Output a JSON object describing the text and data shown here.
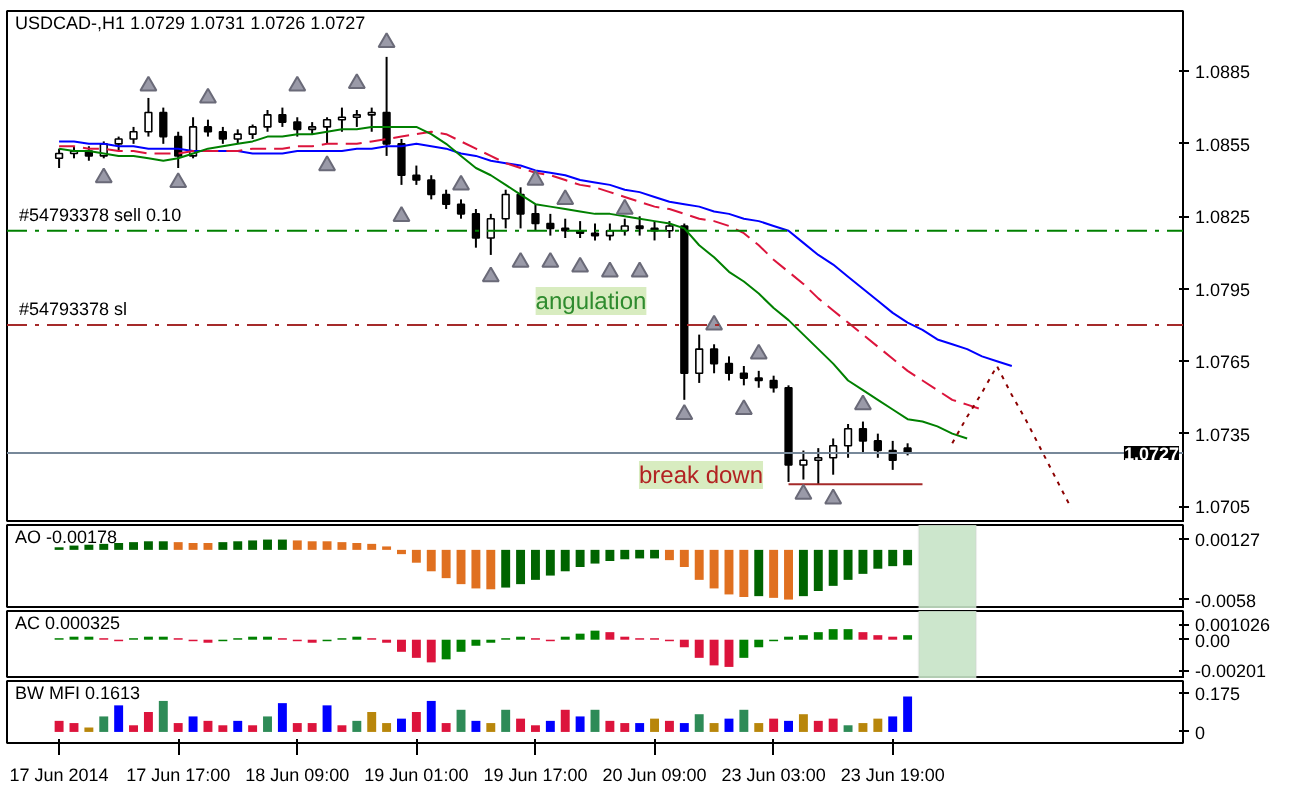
{
  "chart_data": [
    {
      "type": "candlestick",
      "title": "USDCAD-,H1  1.0729 1.0731 1.0726 1.0727",
      "categories": [
        "17 Jun 2014",
        null,
        null,
        null,
        null,
        null,
        null,
        null,
        "17 Jun 17:00",
        null,
        null,
        null,
        null,
        null,
        null,
        null,
        "18 Jun 09:00",
        null,
        null,
        null,
        null,
        null,
        null,
        null,
        "19 Jun 01:00",
        null,
        null,
        null,
        null,
        null,
        null,
        null,
        "19 Jun 17:00",
        null,
        null,
        null,
        null,
        null,
        null,
        null,
        "20 Jun 09:00",
        null,
        null,
        null,
        null,
        null,
        null,
        null,
        "23 Jun 03:00",
        null,
        null,
        null,
        null,
        null,
        null,
        null,
        "23 Jun 19:00",
        null,
        null,
        null,
        null,
        null,
        null,
        null,
        null,
        null,
        null,
        null,
        null,
        null,
        null,
        null,
        null,
        null,
        null,
        null
      ],
      "ohlc": [
        [
          1.0849,
          1.0853,
          1.0845,
          1.0851
        ],
        [
          1.0851,
          1.0854,
          1.0849,
          1.0852
        ],
        [
          1.0852,
          1.0854,
          1.0848,
          1.085
        ],
        [
          1.085,
          1.0856,
          1.0849,
          1.0855
        ],
        [
          1.0855,
          1.0858,
          1.0852,
          1.0857
        ],
        [
          1.0857,
          1.0862,
          1.0855,
          1.086
        ],
        [
          1.086,
          1.0874,
          1.0858,
          1.0868
        ],
        [
          1.0868,
          1.087,
          1.0855,
          1.0858
        ],
        [
          1.0858,
          1.086,
          1.0845,
          1.085
        ],
        [
          1.085,
          1.0866,
          1.0849,
          1.0862
        ],
        [
          1.0862,
          1.0865,
          1.0858,
          1.086
        ],
        [
          1.086,
          1.0862,
          1.0855,
          1.0857
        ],
        [
          1.0857,
          1.0861,
          1.0855,
          1.0859
        ],
        [
          1.0859,
          1.0863,
          1.0857,
          1.0862
        ],
        [
          1.0862,
          1.0869,
          1.086,
          1.0867
        ],
        [
          1.0867,
          1.087,
          1.0862,
          1.0864
        ],
        [
          1.0864,
          1.0866,
          1.0858,
          1.0861
        ],
        [
          1.0861,
          1.0864,
          1.0859,
          1.0862
        ],
        [
          1.0862,
          1.0866,
          1.0855,
          1.0865
        ],
        [
          1.0865,
          1.087,
          1.086,
          1.0866
        ],
        [
          1.0866,
          1.0869,
          1.0862,
          1.0867
        ],
        [
          1.0867,
          1.087,
          1.086,
          1.0868
        ],
        [
          1.0868,
          1.0891,
          1.085,
          1.0855
        ],
        [
          1.0855,
          1.0857,
          1.0838,
          1.0842
        ],
        [
          1.0842,
          1.0846,
          1.0838,
          1.084
        ],
        [
          1.084,
          1.0842,
          1.0832,
          1.0834
        ],
        [
          1.0834,
          1.0836,
          1.0828,
          1.083
        ],
        [
          1.083,
          1.0832,
          1.0824,
          1.0826
        ],
        [
          1.0826,
          1.0828,
          1.0812,
          1.0816
        ],
        [
          1.0816,
          1.0826,
          1.0809,
          1.0824
        ],
        [
          1.0824,
          1.0836,
          1.082,
          1.0834
        ],
        [
          1.0834,
          1.0837,
          1.082,
          1.0826
        ],
        [
          1.0826,
          1.083,
          1.0819,
          1.0822
        ],
        [
          1.0822,
          1.0826,
          1.0817,
          1.082
        ],
        [
          1.082,
          1.0824,
          1.0816,
          1.0819
        ],
        [
          1.0819,
          1.0823,
          1.0816,
          1.0818
        ],
        [
          1.0818,
          1.0822,
          1.0815,
          1.0817
        ],
        [
          1.0817,
          1.0822,
          1.0815,
          1.0819
        ],
        [
          1.0819,
          1.0824,
          1.0817,
          1.0821
        ],
        [
          1.0821,
          1.0825,
          1.0817,
          1.082
        ],
        [
          1.082,
          1.0823,
          1.0815,
          1.0819
        ],
        [
          1.0819,
          1.0823,
          1.0816,
          1.0821
        ],
        [
          1.0821,
          1.0822,
          1.0749,
          1.076
        ],
        [
          1.076,
          1.0776,
          1.0756,
          1.077
        ],
        [
          1.077,
          1.0772,
          1.076,
          1.0764
        ],
        [
          1.0764,
          1.0767,
          1.0757,
          1.076
        ],
        [
          1.076,
          1.0763,
          1.0755,
          1.0758
        ],
        [
          1.0758,
          1.0761,
          1.0754,
          1.0757
        ],
        [
          1.0757,
          1.0759,
          1.0752,
          1.0754
        ],
        [
          1.0754,
          1.0755,
          1.0715,
          1.0722
        ],
        [
          1.0722,
          1.0728,
          1.0716,
          1.0724
        ],
        [
          1.0724,
          1.0729,
          1.0714,
          1.0725
        ],
        [
          1.0725,
          1.0733,
          1.0718,
          1.073
        ],
        [
          1.073,
          1.0739,
          1.0725,
          1.0737
        ],
        [
          1.0737,
          1.074,
          1.0727,
          1.0732
        ],
        [
          1.0732,
          1.0735,
          1.0725,
          1.0728
        ],
        [
          1.0728,
          1.0732,
          1.072,
          1.0724
        ],
        [
          1.0729,
          1.0731,
          1.0726,
          1.0727
        ],
        null,
        null,
        null,
        null,
        null,
        null,
        null,
        null,
        null,
        null,
        null,
        null,
        null,
        null,
        null,
        null,
        null,
        null
      ],
      "series": [
        {
          "type": "line",
          "color": "#0000ff",
          "values": [
            1.0856,
            1.0856,
            1.0855,
            1.0855,
            1.0854,
            1.0854,
            1.0853,
            1.0853,
            1.0853,
            1.0852,
            1.0852,
            1.0852,
            1.0852,
            1.0851,
            1.0851,
            1.0851,
            1.0852,
            1.0852,
            1.0852,
            1.0852,
            1.0853,
            1.0853,
            1.0854,
            1.0854,
            1.0855,
            1.0854,
            1.0853,
            1.0851,
            1.085,
            1.0848,
            1.0847,
            1.0846,
            1.0844,
            1.0843,
            1.0842,
            1.084,
            1.0839,
            1.0838,
            1.0836,
            1.0835,
            1.0833,
            1.0831,
            1.083,
            1.0829,
            1.0827,
            1.0826,
            1.0824,
            1.0823,
            1.0821,
            1.0819,
            1.0814,
            1.0809,
            1.0805,
            1.08,
            1.0795,
            1.079,
            1.0785,
            1.0781,
            1.0778,
            1.0774,
            1.0772,
            1.077,
            1.0767,
            1.0765,
            1.0763,
            null,
            null,
            null,
            null,
            null,
            null,
            null,
            null,
            null,
            null,
            null
          ]
        },
        {
          "type": "line",
          "color": "#dc143c",
          "line_style": "dashed",
          "values": [
            1.0854,
            1.0854,
            1.0853,
            1.0853,
            1.0852,
            1.0852,
            1.0851,
            1.0851,
            1.0851,
            1.0852,
            1.0852,
            1.0852,
            1.0852,
            1.0853,
            1.0853,
            1.0853,
            1.0854,
            1.0854,
            1.0855,
            1.0855,
            1.0855,
            1.0856,
            1.0857,
            1.0858,
            1.0859,
            1.086,
            1.0859,
            1.0856,
            1.0853,
            1.085,
            1.0847,
            1.0845,
            1.0843,
            1.0842,
            1.084,
            1.0838,
            1.0837,
            1.0835,
            1.0833,
            1.0831,
            1.0829,
            1.0828,
            1.0826,
            1.0824,
            1.0823,
            1.0821,
            1.0818,
            1.0813,
            1.0807,
            1.0802,
            1.0797,
            1.0791,
            1.0786,
            1.0781,
            1.0776,
            1.0771,
            1.0766,
            1.0761,
            1.0757,
            1.0753,
            1.0749,
            1.0747,
            1.0745,
            null,
            null,
            null,
            null,
            null,
            null,
            null,
            null,
            null,
            null,
            null,
            null,
            null
          ]
        },
        {
          "type": "line",
          "color": "#008000",
          "values": [
            1.0853,
            1.0852,
            1.0852,
            1.0851,
            1.085,
            1.085,
            1.0849,
            1.0848,
            1.0849,
            1.0851,
            1.0853,
            1.0854,
            1.0855,
            1.0856,
            1.0858,
            1.0858,
            1.0859,
            1.0859,
            1.086,
            1.0861,
            1.0861,
            1.0862,
            1.0862,
            1.0862,
            1.0862,
            1.0859,
            1.0855,
            1.085,
            1.0845,
            1.0842,
            1.0838,
            1.0834,
            1.083,
            1.0829,
            1.0828,
            1.0827,
            1.0826,
            1.0826,
            1.0825,
            1.0824,
            1.0823,
            1.0822,
            1.082,
            1.0813,
            1.0808,
            1.0802,
            1.0798,
            1.0793,
            1.0787,
            1.0782,
            1.0776,
            1.077,
            1.0764,
            1.0757,
            1.0753,
            1.0749,
            1.0745,
            1.0741,
            1.074,
            1.0738,
            1.0735,
            1.0733,
            null,
            null,
            null,
            null,
            null,
            null,
            null,
            null,
            null,
            null,
            null,
            null,
            null,
            null
          ]
        },
        {
          "type": "line",
          "color": "#8b0000",
          "line_style": "dotted",
          "values": [
            null,
            null,
            null,
            null,
            null,
            null,
            null,
            null,
            null,
            null,
            null,
            null,
            null,
            null,
            null,
            null,
            null,
            null,
            null,
            null,
            null,
            null,
            null,
            null,
            null,
            null,
            null,
            null,
            null,
            null,
            null,
            null,
            null,
            null,
            null,
            null,
            null,
            null,
            null,
            null,
            null,
            null,
            null,
            null,
            null,
            null,
            null,
            null,
            null,
            null,
            null,
            null,
            null,
            null,
            null,
            null,
            null,
            null,
            null,
            null,
            1.0731,
            1.0742,
            1.0752,
            1.0763,
            1.0751,
            1.074,
            1.0728,
            1.0716,
            1.0704,
            null,
            null,
            null,
            null,
            null,
            null,
            null
          ]
        },
        {
          "type": "line",
          "color": "#a52a2a",
          "values": [
            null,
            null,
            null,
            null,
            null,
            null,
            null,
            null,
            null,
            null,
            null,
            null,
            null,
            null,
            null,
            null,
            null,
            null,
            null,
            null,
            null,
            null,
            null,
            null,
            null,
            null,
            null,
            null,
            null,
            null,
            null,
            null,
            null,
            null,
            null,
            null,
            null,
            null,
            null,
            null,
            null,
            null,
            null,
            null,
            null,
            null,
            null,
            null,
            null,
            1.0714,
            1.0714,
            1.0714,
            1.0714,
            1.0714,
            1.0714,
            1.0714,
            1.0714,
            1.0714,
            1.0714,
            null,
            null,
            null,
            null,
            null,
            null,
            null,
            null,
            null,
            null,
            null,
            null,
            null,
            null,
            null,
            null,
            null
          ]
        },
        {
          "type": "scatter",
          "marker": "triangle",
          "color": "#9a9aa8",
          "values": [
            null,
            null,
            null,
            1.0841,
            null,
            null,
            1.0879,
            null,
            1.0839,
            null,
            1.0874,
            null,
            null,
            null,
            null,
            null,
            1.0879,
            null,
            1.0846,
            null,
            1.088,
            null,
            1.0897,
            1.0825,
            null,
            null,
            null,
            1.0838,
            null,
            1.08,
            null,
            1.0806,
            1.084,
            1.0806,
            1.0832,
            1.0804,
            null,
            1.0802,
            1.0828,
            1.0802,
            null,
            null,
            1.0743,
            null,
            1.078,
            null,
            1.0745,
            1.0768,
            null,
            null,
            1.071,
            null,
            1.0708,
            null,
            1.0747,
            null,
            null,
            null,
            null,
            null,
            null,
            null,
            null,
            null,
            null,
            null,
            null,
            null,
            null,
            null,
            null,
            null,
            null,
            null,
            null,
            null
          ]
        }
      ],
      "ref_lines": [
        {
          "axis": "y",
          "value": 1.0819,
          "label": "#54793378 sell 0.10",
          "color": "#008000",
          "line_style": "dashed"
        },
        {
          "axis": "y",
          "value": 1.078,
          "label": "#54793378 sl",
          "color": "#a52a2a",
          "line_style": "dashed"
        },
        {
          "axis": "y",
          "value": 1.0727,
          "label": "1.0727",
          "color": "#778899",
          "line_style": "solid"
        }
      ],
      "annotations": [
        "angulation",
        "break down"
      ],
      "ylim": [
        1.0698,
        1.091
      ],
      "yticks": [
        1.0705,
        1.0735,
        1.0765,
        1.0795,
        1.0825,
        1.0855,
        1.0885
      ],
      "tick_labels": "y"
    },
    {
      "type": "bar",
      "title": "AO -0.00178",
      "categories": [
        "17 Jun 2014",
        null,
        null,
        null,
        null,
        null,
        null,
        null,
        "17 Jun 17:00",
        null,
        null,
        null,
        null,
        null,
        null,
        null,
        "18 Jun 09:00",
        null,
        null,
        null,
        null,
        null,
        null,
        null,
        "19 Jun 01:00",
        null,
        null,
        null,
        null,
        null,
        null,
        null,
        "19 Jun 17:00",
        null,
        null,
        null,
        null,
        null,
        null,
        null,
        "20 Jun 09:00",
        null,
        null,
        null,
        null,
        null,
        null,
        null,
        "23 Jun 03:00",
        null,
        null,
        null,
        null,
        null,
        null,
        null,
        "23 Jun 19:00",
        null,
        null,
        null,
        null,
        null,
        null,
        null,
        null,
        null,
        null,
        null,
        null,
        null,
        null,
        null,
        null,
        null,
        null,
        null
      ],
      "values": [
        0.0003,
        0.0005,
        0.0006,
        0.0007,
        0.0008,
        0.0009,
        0.001,
        0.001,
        0.0009,
        0.0008,
        0.0008,
        0.0009,
        0.001,
        0.0011,
        0.0012,
        0.0012,
        0.0011,
        0.001,
        0.001,
        0.0009,
        0.0008,
        0.0007,
        0.0004,
        -0.0005,
        -0.0015,
        -0.0025,
        -0.0033,
        -0.004,
        -0.0045,
        -0.0046,
        -0.0044,
        -0.004,
        -0.0035,
        -0.003,
        -0.0025,
        -0.002,
        -0.0016,
        -0.0013,
        -0.0011,
        -0.001,
        -0.001,
        -0.0012,
        -0.002,
        -0.0035,
        -0.0045,
        -0.0052,
        -0.0055,
        -0.0054,
        -0.0056,
        -0.0058,
        -0.0054,
        -0.0048,
        -0.0042,
        -0.0035,
        -0.0028,
        -0.0022,
        -0.0019,
        -0.0018,
        null,
        null,
        null,
        null,
        null,
        null,
        null,
        null,
        null,
        null,
        null,
        null,
        null,
        null,
        null,
        null,
        null,
        null
      ],
      "colors": [
        "#006400",
        "#006400",
        "#006400",
        "#006400",
        "#006400",
        "#006400",
        "#006400",
        "#006400",
        "#e07020",
        "#e07020",
        "#e07020",
        "#006400",
        "#006400",
        "#006400",
        "#006400",
        "#006400",
        "#e07020",
        "#e07020",
        "#e07020",
        "#e07020",
        "#e07020",
        "#e07020",
        "#e07020",
        "#e07020",
        "#e07020",
        "#e07020",
        "#e07020",
        "#e07020",
        "#e07020",
        "#e07020",
        "#006400",
        "#006400",
        "#006400",
        "#006400",
        "#006400",
        "#006400",
        "#006400",
        "#006400",
        "#006400",
        "#006400",
        "#006400",
        "#e07020",
        "#e07020",
        "#e07020",
        "#e07020",
        "#e07020",
        "#e07020",
        "#006400",
        "#e07020",
        "#e07020",
        "#006400",
        "#006400",
        "#006400",
        "#006400",
        "#006400",
        "#006400",
        "#006400",
        "#006400",
        null,
        null,
        null,
        null,
        null,
        null,
        null,
        null,
        null,
        null,
        null,
        null,
        null,
        null,
        null,
        null,
        null,
        null
      ],
      "ylim": [
        -0.0069,
        0.0029
      ],
      "yticks": [
        -0.0058,
        {
          "value": 0.00127,
          "label": "0.00127"
        }
      ],
      "tick_labels": "y"
    },
    {
      "type": "bar",
      "title": "AC 0.000325",
      "categories": [
        "17 Jun 2014",
        null,
        null,
        null,
        null,
        null,
        null,
        null,
        "17 Jun 17:00",
        null,
        null,
        null,
        null,
        null,
        null,
        null,
        "18 Jun 09:00",
        null,
        null,
        null,
        null,
        null,
        null,
        null,
        "19 Jun 01:00",
        null,
        null,
        null,
        null,
        null,
        null,
        null,
        "19 Jun 17:00",
        null,
        null,
        null,
        null,
        null,
        null,
        null,
        "20 Jun 09:00",
        null,
        null,
        null,
        null,
        null,
        null,
        null,
        "23 Jun 03:00",
        null,
        null,
        null,
        null,
        null,
        null,
        null,
        "23 Jun 19:00",
        null,
        null,
        null,
        null,
        null,
        null,
        null,
        null,
        null,
        null,
        null,
        null,
        null,
        null,
        null,
        null,
        null,
        null,
        null
      ],
      "values": [
        0.0001,
        0.0002,
        0.0002,
        0.0001,
        -0.0001,
        0.0001,
        0.0002,
        0.0002,
        0.0001,
        -0.0001,
        -0.0002,
        -0.0001,
        0.0001,
        0.0002,
        0.0002,
        0.0001,
        -0.0001,
        -0.0002,
        -0.0001,
        0.0001,
        0.0002,
        0.0001,
        -0.0002,
        -0.0008,
        -0.0012,
        -0.0015,
        -0.0013,
        -0.0008,
        -0.0004,
        -0.0002,
        0.0001,
        0.0002,
        0.0001,
        -0.0001,
        0.0002,
        0.0004,
        0.0006,
        0.0005,
        0.0002,
        0.0001,
        0.0001,
        -0.0001,
        -0.0005,
        -0.0012,
        -0.0017,
        -0.0018,
        -0.0012,
        -0.0005,
        -0.0001,
        0.0002,
        0.0003,
        0.0005,
        0.0007,
        0.0007,
        0.0005,
        0.0003,
        0.0002,
        0.0003,
        null,
        null,
        null,
        null,
        null,
        null,
        null,
        null,
        null,
        null,
        null,
        null,
        null,
        null,
        null,
        null,
        null,
        null
      ],
      "colors": [
        "#008000",
        "#008000",
        "#008000",
        "#dc143c",
        "#dc143c",
        "#008000",
        "#008000",
        "#008000",
        "#dc143c",
        "#dc143c",
        "#dc143c",
        "#008000",
        "#008000",
        "#008000",
        "#008000",
        "#dc143c",
        "#dc143c",
        "#dc143c",
        "#008000",
        "#008000",
        "#008000",
        "#dc143c",
        "#dc143c",
        "#dc143c",
        "#dc143c",
        "#dc143c",
        "#008000",
        "#008000",
        "#008000",
        "#008000",
        "#008000",
        "#008000",
        "#dc143c",
        "#dc143c",
        "#008000",
        "#008000",
        "#008000",
        "#dc143c",
        "#dc143c",
        "#dc143c",
        "#dc143c",
        "#dc143c",
        "#dc143c",
        "#dc143c",
        "#dc143c",
        "#dc143c",
        "#008000",
        "#008000",
        "#008000",
        "#008000",
        "#008000",
        "#008000",
        "#008000",
        "#008000",
        "#dc143c",
        "#dc143c",
        "#dc143c",
        "#008000",
        null,
        null,
        null,
        null,
        null,
        null,
        null,
        null,
        null,
        null,
        null,
        null,
        null,
        null,
        null,
        null,
        null,
        null
      ],
      "ylim": [
        -0.0026,
        0.0019
      ],
      "yticks": [
        -0.00201,
        {
          "value": 0,
          "label": "0.00"
        },
        0.001026
      ],
      "tick_labels": "y"
    },
    {
      "type": "bar",
      "title": "BW MFI 0.1613",
      "categories": [
        "17 Jun 2014",
        null,
        null,
        null,
        null,
        null,
        null,
        null,
        "17 Jun 17:00",
        null,
        null,
        null,
        null,
        null,
        null,
        null,
        "18 Jun 09:00",
        null,
        null,
        null,
        null,
        null,
        null,
        null,
        "19 Jun 01:00",
        null,
        null,
        null,
        null,
        null,
        null,
        null,
        "19 Jun 17:00",
        null,
        null,
        null,
        null,
        null,
        null,
        null,
        "20 Jun 09:00",
        null,
        null,
        null,
        null,
        null,
        null,
        null,
        "23 Jun 03:00",
        null,
        null,
        null,
        null,
        null,
        null,
        null,
        "23 Jun 19:00",
        null,
        null,
        null,
        null,
        null,
        null,
        null,
        null,
        null,
        null,
        null,
        null,
        null,
        null,
        null,
        null,
        null,
        null,
        null
      ],
      "values": [
        0.05,
        0.04,
        0.02,
        0.07,
        0.12,
        0.03,
        0.09,
        0.14,
        0.04,
        0.07,
        0.05,
        0.03,
        0.05,
        0.03,
        0.07,
        0.13,
        0.04,
        0.04,
        0.12,
        0.03,
        0.05,
        0.09,
        0.04,
        0.06,
        0.09,
        0.14,
        0.04,
        0.1,
        0.05,
        0.04,
        0.1,
        0.06,
        0.03,
        0.05,
        0.1,
        0.07,
        0.1,
        0.05,
        0.04,
        0.04,
        0.06,
        0.05,
        0.04,
        0.08,
        0.04,
        0.06,
        0.1,
        0.04,
        0.06,
        0.05,
        0.08,
        0.05,
        0.06,
        0.03,
        0.04,
        0.06,
        0.07,
        0.16,
        null,
        null,
        null,
        null,
        null,
        null,
        null,
        null,
        null,
        null,
        null,
        null,
        null,
        null,
        null,
        null,
        null,
        null
      ],
      "colors": [
        "#dc143c",
        "#dc143c",
        "#b8860b",
        "#2e8b57",
        "#0000ff",
        "#dc143c",
        "#dc143c",
        "#2e8b57",
        "#dc143c",
        "#0000ff",
        "#dc143c",
        "#dc143c",
        "#0000ff",
        "#dc143c",
        "#2e8b57",
        "#0000ff",
        "#dc143c",
        "#dc143c",
        "#0000ff",
        "#dc143c",
        "#2e8b57",
        "#b8860b",
        "#b8860b",
        "#0000ff",
        "#dc143c",
        "#0000ff",
        "#dc143c",
        "#2e8b57",
        "#0000ff",
        "#b8860b",
        "#2e8b57",
        "#dc143c",
        "#dc143c",
        "#0000ff",
        "#dc143c",
        "#0000ff",
        "#2e8b57",
        "#dc143c",
        "#dc143c",
        "#0000ff",
        "#b8860b",
        "#dc143c",
        "#0000ff",
        "#2e8b57",
        "#b8860b",
        "#0000ff",
        "#2e8b57",
        "#b8860b",
        "#dc143c",
        "#0000ff",
        "#b8860b",
        "#dc143c",
        "#dc143c",
        "#2e8b57",
        "#b8860b",
        "#b8860b",
        "#0000ff",
        "#0000ff",
        null,
        null,
        null,
        null,
        null,
        null,
        null,
        null,
        null,
        null,
        null,
        null,
        null,
        null,
        null,
        null,
        null,
        null
      ],
      "ylim": [
        -0.05,
        0.23
      ],
      "yticks": [
        0,
        0.175
      ]
    }
  ]
}
